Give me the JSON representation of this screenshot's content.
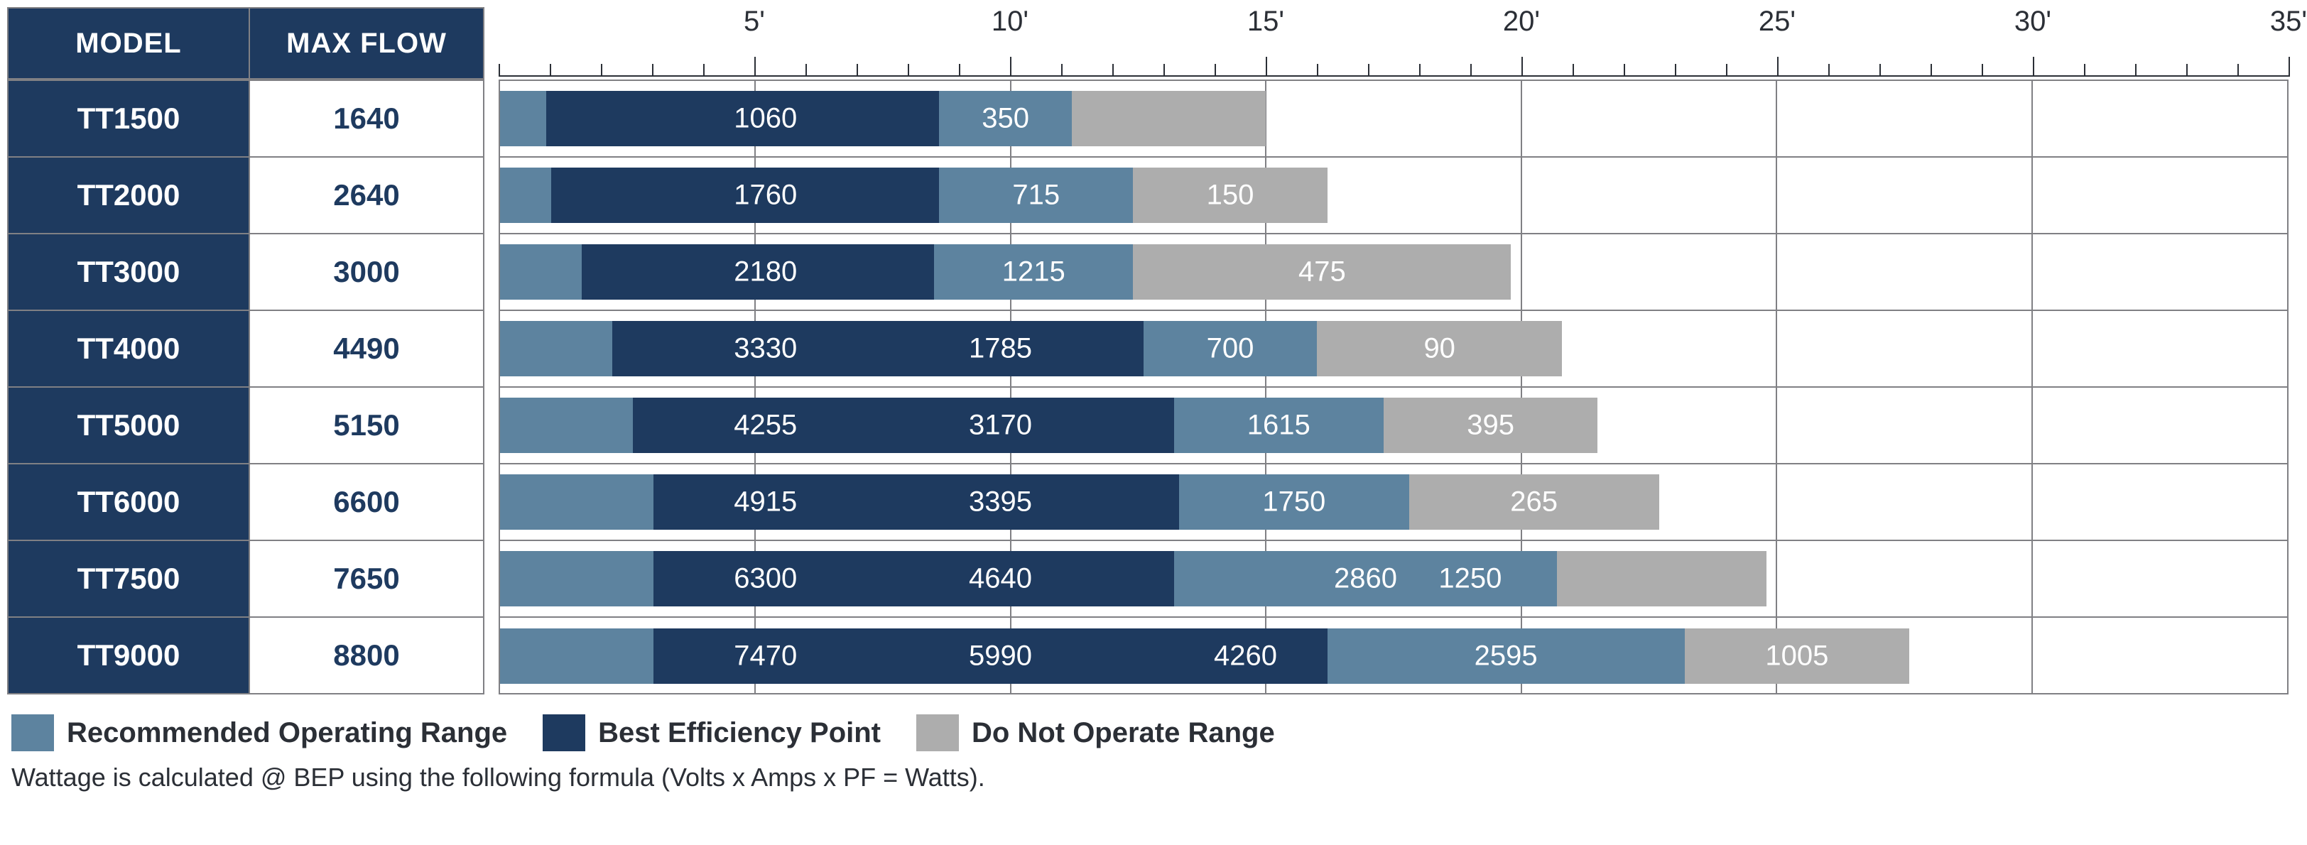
{
  "colors": {
    "recommended": "#5d839f",
    "bep": "#1e3a5f",
    "dno": "#adadad",
    "grid": "#808084",
    "text": "#2b2f36",
    "white": "#ffffff"
  },
  "axis": {
    "min": 0,
    "max": 35,
    "major_step": 5,
    "minor_step": 1,
    "labels": [
      "5'",
      "10'",
      "15'",
      "20'",
      "25'",
      "30'",
      "35'"
    ],
    "label_positions": [
      5,
      10,
      15,
      20,
      25,
      30,
      35
    ]
  },
  "headers": {
    "model": "MODEL",
    "maxflow": "MAX FLOW"
  },
  "rows": [
    {
      "model": "TT1500",
      "maxflow": "1640",
      "segments": [
        {
          "kind": "recommended",
          "from": 0,
          "to": 0.9,
          "label": ""
        },
        {
          "kind": "bep",
          "from": 0.9,
          "to": 8.6,
          "label": "1060"
        },
        {
          "kind": "recommended",
          "from": 8.6,
          "to": 11.2,
          "label": "350"
        },
        {
          "kind": "dno",
          "from": 11.2,
          "to": 15.0,
          "label": ""
        }
      ]
    },
    {
      "model": "TT2000",
      "maxflow": "2640",
      "segments": [
        {
          "kind": "recommended",
          "from": 0,
          "to": 1.0,
          "label": ""
        },
        {
          "kind": "bep",
          "from": 1.0,
          "to": 8.6,
          "label": "1760"
        },
        {
          "kind": "recommended",
          "from": 8.6,
          "to": 12.4,
          "label": "715"
        },
        {
          "kind": "dno",
          "from": 12.4,
          "to": 16.2,
          "label": "150"
        }
      ]
    },
    {
      "model": "TT3000",
      "maxflow": "3000",
      "segments": [
        {
          "kind": "recommended",
          "from": 0,
          "to": 1.6,
          "label": ""
        },
        {
          "kind": "bep",
          "from": 1.6,
          "to": 8.5,
          "label": "2180"
        },
        {
          "kind": "recommended",
          "from": 8.5,
          "to": 12.4,
          "label": "1215"
        },
        {
          "kind": "dno",
          "from": 12.4,
          "to": 19.8,
          "label": "475"
        }
      ]
    },
    {
      "model": "TT4000",
      "maxflow": "4490",
      "segments": [
        {
          "kind": "recommended",
          "from": 0,
          "to": 2.2,
          "label": ""
        },
        {
          "kind": "bep",
          "from": 2.2,
          "to": 12.6,
          "label": "3330"
        },
        {
          "kind": "bep_label2",
          "from": 7.9,
          "to": 7.9,
          "label": "1785"
        },
        {
          "kind": "recommended",
          "from": 12.6,
          "to": 16.0,
          "label": "700"
        },
        {
          "kind": "dno",
          "from": 16.0,
          "to": 20.8,
          "label": "90"
        }
      ],
      "extra_labels": [
        {
          "at": 9.8,
          "text": "1785",
          "in_kind": "bep"
        }
      ]
    },
    {
      "model": "TT5000",
      "maxflow": "5150",
      "segments": [
        {
          "kind": "recommended",
          "from": 0,
          "to": 2.6,
          "label": ""
        },
        {
          "kind": "bep",
          "from": 2.6,
          "to": 13.2,
          "label": "4255"
        },
        {
          "kind": "recommended",
          "from": 13.2,
          "to": 17.3,
          "label": "1615"
        },
        {
          "kind": "dno",
          "from": 17.3,
          "to": 21.5,
          "label": "395"
        }
      ],
      "extra_labels": [
        {
          "at": 9.8,
          "text": "3170",
          "in_kind": "bep"
        }
      ]
    },
    {
      "model": "TT6000",
      "maxflow": "6600",
      "segments": [
        {
          "kind": "recommended",
          "from": 0,
          "to": 3.0,
          "label": ""
        },
        {
          "kind": "bep",
          "from": 3.0,
          "to": 13.3,
          "label": "4915"
        },
        {
          "kind": "recommended",
          "from": 13.3,
          "to": 17.8,
          "label": "1750"
        },
        {
          "kind": "dno",
          "from": 17.8,
          "to": 22.7,
          "label": "265"
        }
      ],
      "extra_labels": [
        {
          "at": 9.8,
          "text": "3395",
          "in_kind": "bep"
        }
      ]
    },
    {
      "model": "TT7500",
      "maxflow": "7650",
      "segments": [
        {
          "kind": "recommended",
          "from": 0,
          "to": 3.0,
          "label": ""
        },
        {
          "kind": "bep",
          "from": 3.0,
          "to": 13.2,
          "label": "6300"
        },
        {
          "kind": "recommended",
          "from": 13.2,
          "to": 20.7,
          "label": "2860"
        },
        {
          "kind": "dno",
          "from": 20.7,
          "to": 24.8,
          "label": ""
        }
      ],
      "extra_labels": [
        {
          "at": 9.8,
          "text": "4640",
          "in_kind": "bep"
        },
        {
          "at": 19.0,
          "text": "1250",
          "in_kind": "recommended"
        }
      ]
    },
    {
      "model": "TT9000",
      "maxflow": "8800",
      "segments": [
        {
          "kind": "recommended",
          "from": 0,
          "to": 3.0,
          "label": ""
        },
        {
          "kind": "bep",
          "from": 3.0,
          "to": 16.2,
          "label": "7470"
        },
        {
          "kind": "recommended",
          "from": 16.2,
          "to": 23.2,
          "label": "2595"
        },
        {
          "kind": "dno",
          "from": 23.2,
          "to": 27.6,
          "label": "1005"
        }
      ],
      "extra_labels": [
        {
          "at": 9.8,
          "text": "5990",
          "in_kind": "bep"
        },
        {
          "at": 14.6,
          "text": "4260",
          "in_kind": "bep"
        }
      ]
    }
  ],
  "legend": {
    "recommended": "Recommended Operating Range",
    "bep": "Best Efficiency Point",
    "dno": "Do Not Operate Range"
  },
  "footnote": "Wattage is calculated @ BEP using the following formula   (Volts x Amps x PF = Watts)."
}
